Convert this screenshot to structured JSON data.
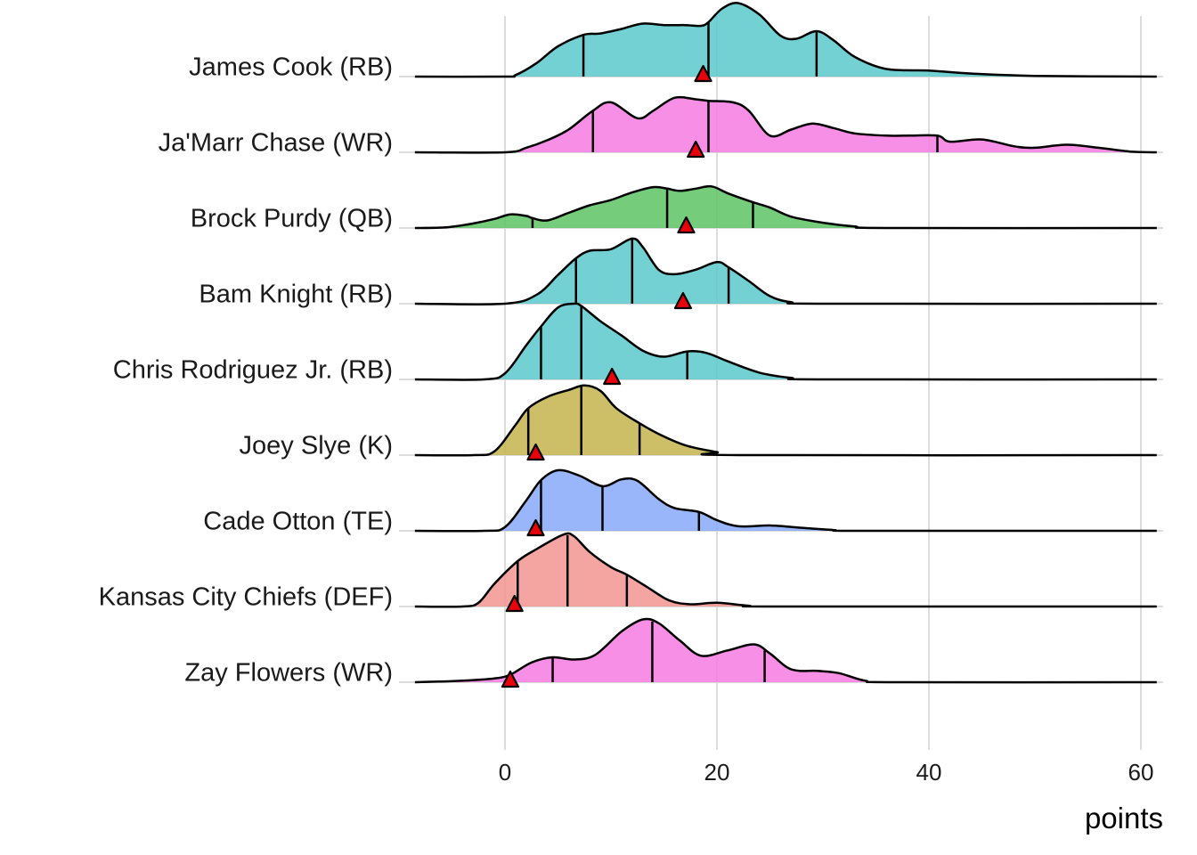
{
  "chart_data": {
    "type": "ridgeline",
    "title": "",
    "xlabel": "points",
    "ylabel": "",
    "xlim": [
      -8.5,
      61.5
    ],
    "x_ticks": [
      0,
      20,
      40,
      60
    ],
    "x_tick_labels": [
      "0",
      "20",
      "40",
      "60"
    ],
    "grid": true,
    "legend": "none",
    "marker": {
      "shape": "triangle",
      "color": "#E8000B"
    },
    "series": [
      {
        "name": "James Cook (RB)",
        "color": "#5BC9CB",
        "quantiles": [
          7.4,
          19.2,
          29.4
        ],
        "marker_value": 18.7,
        "density": [
          [
            -8.5,
            0
          ],
          [
            0,
            0
          ],
          [
            1,
            0.02
          ],
          [
            3,
            0.18
          ],
          [
            5,
            0.4
          ],
          [
            7.4,
            0.55
          ],
          [
            9,
            0.57
          ],
          [
            11,
            0.63
          ],
          [
            13,
            0.7
          ],
          [
            15,
            0.68
          ],
          [
            17,
            0.68
          ],
          [
            18.5,
            0.67
          ],
          [
            19.2,
            0.72
          ],
          [
            20.5,
            0.9
          ],
          [
            22,
            0.97
          ],
          [
            24,
            0.82
          ],
          [
            26,
            0.54
          ],
          [
            27.5,
            0.5
          ],
          [
            29.4,
            0.6
          ],
          [
            31,
            0.48
          ],
          [
            33,
            0.26
          ],
          [
            36,
            0.1
          ],
          [
            40,
            0.08
          ],
          [
            44,
            0.04
          ],
          [
            50,
            0.01
          ],
          [
            61.5,
            0
          ]
        ]
      },
      {
        "name": "Ja'Marr Chase (WR)",
        "color": "#F47BE1",
        "quantiles": [
          8.3,
          19.2,
          40.8
        ],
        "marker_value": 18.0,
        "density": [
          [
            -8.5,
            0
          ],
          [
            0,
            0
          ],
          [
            2,
            0.06
          ],
          [
            4,
            0.16
          ],
          [
            6,
            0.3
          ],
          [
            8.3,
            0.55
          ],
          [
            10,
            0.66
          ],
          [
            12.5,
            0.45
          ],
          [
            14,
            0.55
          ],
          [
            16,
            0.72
          ],
          [
            18,
            0.7
          ],
          [
            19.2,
            0.68
          ],
          [
            21.5,
            0.66
          ],
          [
            23,
            0.55
          ],
          [
            25,
            0.22
          ],
          [
            27,
            0.3
          ],
          [
            29,
            0.38
          ],
          [
            31,
            0.32
          ],
          [
            33,
            0.25
          ],
          [
            36,
            0.22
          ],
          [
            38,
            0.22
          ],
          [
            40.8,
            0.22
          ],
          [
            42,
            0.14
          ],
          [
            45,
            0.17
          ],
          [
            48,
            0.08
          ],
          [
            50,
            0.06
          ],
          [
            53,
            0.1
          ],
          [
            56,
            0.06
          ],
          [
            59,
            0.01
          ],
          [
            61.5,
            0
          ]
        ]
      },
      {
        "name": "Brock Purdy (QB)",
        "color": "#5DC465",
        "quantiles": [
          2.6,
          15.3,
          23.4
        ],
        "marker_value": 17.1,
        "density": [
          [
            -8.5,
            0
          ],
          [
            -5.5,
            0.01
          ],
          [
            -3,
            0.06
          ],
          [
            -1,
            0.12
          ],
          [
            0.5,
            0.18
          ],
          [
            2,
            0.16
          ],
          [
            2.6,
            0.13
          ],
          [
            4,
            0.1
          ],
          [
            6,
            0.2
          ],
          [
            8,
            0.3
          ],
          [
            10,
            0.37
          ],
          [
            12,
            0.47
          ],
          [
            14,
            0.54
          ],
          [
            15.3,
            0.52
          ],
          [
            16.5,
            0.49
          ],
          [
            18,
            0.52
          ],
          [
            19.5,
            0.55
          ],
          [
            21,
            0.46
          ],
          [
            23.4,
            0.34
          ],
          [
            25,
            0.27
          ],
          [
            27,
            0.15
          ],
          [
            30,
            0.07
          ],
          [
            33,
            0.02
          ],
          [
            36,
            0
          ],
          [
            61.5,
            0
          ]
        ]
      },
      {
        "name": "Bam Knight (RB)",
        "color": "#5BC9CB",
        "quantiles": [
          6.7,
          12.0,
          21.1
        ],
        "marker_value": 16.8,
        "density": [
          [
            -8.5,
            0
          ],
          [
            0,
            0
          ],
          [
            3,
            0.12
          ],
          [
            5,
            0.38
          ],
          [
            6.7,
            0.6
          ],
          [
            8,
            0.7
          ],
          [
            10,
            0.72
          ],
          [
            12,
            0.86
          ],
          [
            13,
            0.75
          ],
          [
            14.5,
            0.45
          ],
          [
            16,
            0.39
          ],
          [
            18,
            0.45
          ],
          [
            20,
            0.55
          ],
          [
            21.1,
            0.48
          ],
          [
            23,
            0.3
          ],
          [
            25,
            0.1
          ],
          [
            27,
            0.02
          ],
          [
            30,
            0
          ],
          [
            61.5,
            0
          ]
        ]
      },
      {
        "name": "Chris Rodriguez Jr. (RB)",
        "color": "#5BC9CB",
        "quantiles": [
          3.4,
          7.2,
          17.2
        ],
        "marker_value": 10.1,
        "density": [
          [
            -8.5,
            0
          ],
          [
            -2,
            0
          ],
          [
            0,
            0.08
          ],
          [
            2,
            0.45
          ],
          [
            3.4,
            0.7
          ],
          [
            5,
            0.95
          ],
          [
            6.5,
            1.0
          ],
          [
            7.2,
            0.97
          ],
          [
            9,
            0.77
          ],
          [
            11,
            0.58
          ],
          [
            13,
            0.38
          ],
          [
            15,
            0.3
          ],
          [
            17.2,
            0.37
          ],
          [
            19,
            0.35
          ],
          [
            21,
            0.24
          ],
          [
            24,
            0.09
          ],
          [
            27,
            0.02
          ],
          [
            30,
            0
          ],
          [
            61.5,
            0
          ]
        ]
      },
      {
        "name": "Joey Slye (K)",
        "color": "#C4B44D",
        "quantiles": [
          2.2,
          7.2,
          12.7
        ],
        "marker_value": 2.9,
        "density": [
          [
            -8.5,
            0
          ],
          [
            -3,
            0
          ],
          [
            -1,
            0.05
          ],
          [
            1,
            0.4
          ],
          [
            2.2,
            0.62
          ],
          [
            4,
            0.77
          ],
          [
            6,
            0.86
          ],
          [
            7.5,
            0.92
          ],
          [
            9,
            0.85
          ],
          [
            10.5,
            0.62
          ],
          [
            12.7,
            0.42
          ],
          [
            14.5,
            0.28
          ],
          [
            17,
            0.13
          ],
          [
            20,
            0.04
          ],
          [
            22,
            0
          ],
          [
            61.5,
            0
          ]
        ]
      },
      {
        "name": "Cade Otton (TE)",
        "color": "#86A9F8",
        "quantiles": [
          3.4,
          9.2,
          18.3
        ],
        "marker_value": 2.9,
        "density": [
          [
            -8.5,
            0
          ],
          [
            -2,
            0
          ],
          [
            0,
            0.05
          ],
          [
            2,
            0.4
          ],
          [
            3.4,
            0.67
          ],
          [
            5,
            0.8
          ],
          [
            7,
            0.73
          ],
          [
            9.2,
            0.59
          ],
          [
            11,
            0.68
          ],
          [
            12.5,
            0.66
          ],
          [
            14.5,
            0.42
          ],
          [
            16,
            0.3
          ],
          [
            18.3,
            0.25
          ],
          [
            20,
            0.14
          ],
          [
            22,
            0.06
          ],
          [
            25,
            0.07
          ],
          [
            28,
            0.04
          ],
          [
            31,
            0.01
          ],
          [
            34,
            0
          ],
          [
            61.5,
            0
          ]
        ]
      },
      {
        "name": "Kansas City Chiefs (DEF)",
        "color": "#F39590",
        "quantiles": [
          1.2,
          5.9,
          11.5
        ],
        "marker_value": 0.9,
        "density": [
          [
            -8.5,
            0
          ],
          [
            -4,
            0
          ],
          [
            -2.5,
            0.05
          ],
          [
            -1,
            0.3
          ],
          [
            1.2,
            0.6
          ],
          [
            3,
            0.76
          ],
          [
            5.5,
            0.95
          ],
          [
            6.5,
            0.93
          ],
          [
            8,
            0.72
          ],
          [
            10,
            0.52
          ],
          [
            11.5,
            0.42
          ],
          [
            13.5,
            0.25
          ],
          [
            15.5,
            0.08
          ],
          [
            17.5,
            0.03
          ],
          [
            20,
            0.05
          ],
          [
            23,
            0.01
          ],
          [
            26,
            0
          ],
          [
            61.5,
            0
          ]
        ]
      },
      {
        "name": "Zay Flowers (WR)",
        "color": "#F47BE1",
        "quantiles": [
          4.5,
          13.9,
          24.5
        ],
        "marker_value": 0.5,
        "density": [
          [
            -8.5,
            0
          ],
          [
            -4,
            0.02
          ],
          [
            -1,
            0.05
          ],
          [
            0.5,
            0.1
          ],
          [
            2.5,
            0.26
          ],
          [
            4.5,
            0.33
          ],
          [
            6.5,
            0.3
          ],
          [
            8.5,
            0.36
          ],
          [
            11,
            0.67
          ],
          [
            13,
            0.83
          ],
          [
            14.5,
            0.78
          ],
          [
            16.5,
            0.55
          ],
          [
            18.5,
            0.35
          ],
          [
            21,
            0.42
          ],
          [
            23.5,
            0.5
          ],
          [
            25,
            0.38
          ],
          [
            27,
            0.17
          ],
          [
            29.5,
            0.15
          ],
          [
            31.5,
            0.12
          ],
          [
            34,
            0.02
          ],
          [
            37,
            0
          ],
          [
            61.5,
            0
          ]
        ]
      }
    ]
  }
}
